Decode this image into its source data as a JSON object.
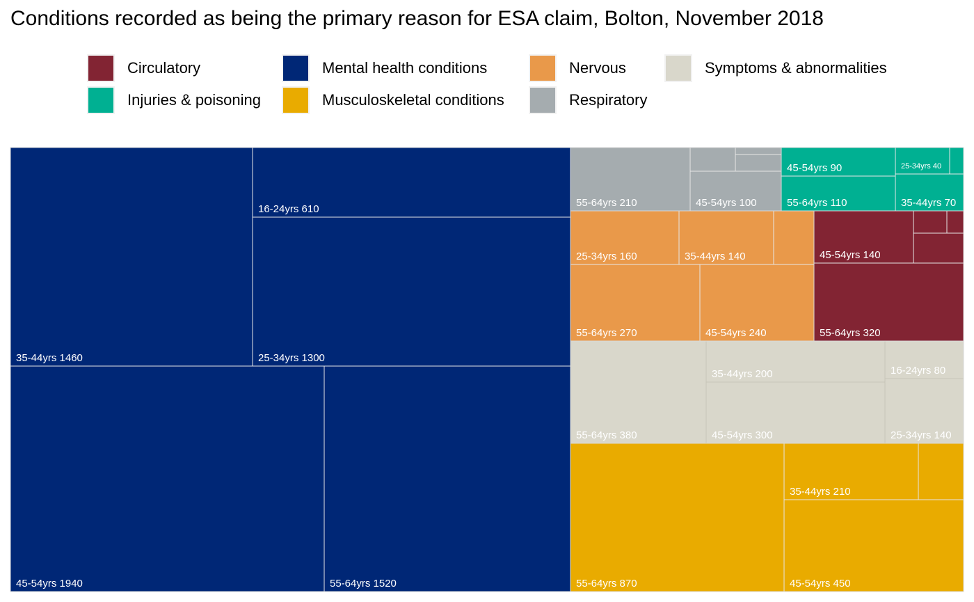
{
  "title": "Conditions recorded as being the primary reason for ESA claim, Bolton, November 2018",
  "chart_data": {
    "type": "treemap",
    "title": "Conditions recorded as being the primary reason for ESA claim, Bolton, November 2018",
    "legend": {
      "position": "top",
      "entries": [
        {
          "name": "Circulatory",
          "color": "#822433"
        },
        {
          "name": "Injuries & poisoning",
          "color": "#00B092"
        },
        {
          "name": "Mental health conditions",
          "color": "#002776"
        },
        {
          "name": "Musculoskeletal conditions",
          "color": "#E9AB00"
        },
        {
          "name": "Nervous",
          "color": "#E9994A"
        },
        {
          "name": "Respiratory",
          "color": "#A5ACAF"
        },
        {
          "name": "Symptoms & abnormalities",
          "color": "#D9D7CB"
        }
      ]
    },
    "groups": [
      {
        "name": "Mental health conditions",
        "cells": [
          {
            "label": "45-54yrs 1940",
            "age": "45-54yrs",
            "value": 1940
          },
          {
            "label": "55-64yrs 1520",
            "age": "55-64yrs",
            "value": 1520
          },
          {
            "label": "35-44yrs 1460",
            "age": "35-44yrs",
            "value": 1460
          },
          {
            "label": "25-34yrs 1300",
            "age": "25-34yrs",
            "value": 1300
          },
          {
            "label": "16-24yrs 610",
            "age": "16-24yrs",
            "value": 610
          }
        ]
      },
      {
        "name": "Musculoskeletal conditions",
        "cells": [
          {
            "label": "55-64yrs 870",
            "age": "55-64yrs",
            "value": 870
          },
          {
            "label": "45-54yrs 450",
            "age": "45-54yrs",
            "value": 450
          },
          {
            "label": "35-44yrs 210",
            "age": "35-44yrs",
            "value": 210
          },
          {
            "label": "",
            "value": 70
          }
        ]
      },
      {
        "name": "Symptoms & abnormalities",
        "cells": [
          {
            "label": "55-64yrs 380",
            "age": "55-64yrs",
            "value": 380
          },
          {
            "label": "45-54yrs 300",
            "age": "45-54yrs",
            "value": 300
          },
          {
            "label": "35-44yrs 200",
            "age": "35-44yrs",
            "value": 200
          },
          {
            "label": "25-34yrs 140",
            "age": "25-34yrs",
            "value": 140
          },
          {
            "label": "16-24yrs 80",
            "age": "16-24yrs",
            "value": 80
          }
        ]
      },
      {
        "name": "Nervous",
        "cells": [
          {
            "label": "55-64yrs 270",
            "age": "55-64yrs",
            "value": 270
          },
          {
            "label": "45-54yrs 240",
            "age": "45-54yrs",
            "value": 240
          },
          {
            "label": "25-34yrs 160",
            "age": "25-34yrs",
            "value": 160
          },
          {
            "label": "35-44yrs 140",
            "age": "35-44yrs",
            "value": 140
          },
          {
            "label": "",
            "value": 50
          }
        ]
      },
      {
        "name": "Circulatory",
        "cells": [
          {
            "label": "55-64yrs 320",
            "age": "55-64yrs",
            "value": 320
          },
          {
            "label": "45-54yrs 140",
            "age": "45-54yrs",
            "value": 140
          },
          {
            "label": "",
            "value": 40
          },
          {
            "label": "",
            "value": 20
          },
          {
            "label": "",
            "value": 10
          }
        ]
      },
      {
        "name": "Respiratory",
        "cells": [
          {
            "label": "55-64yrs 210",
            "age": "55-64yrs",
            "value": 210
          },
          {
            "label": "45-54yrs 100",
            "age": "45-54yrs",
            "value": 100
          },
          {
            "label": "",
            "value": 30
          },
          {
            "label": "",
            "value": 20
          },
          {
            "label": "",
            "value": 10
          }
        ]
      },
      {
        "name": "Injuries & poisoning",
        "cells": [
          {
            "label": "55-64yrs 110",
            "age": "55-64yrs",
            "value": 110
          },
          {
            "label": "45-54yrs 90",
            "age": "45-54yrs",
            "value": 90
          },
          {
            "label": "35-44yrs 70",
            "age": "35-44yrs",
            "value": 70
          },
          {
            "label": "25-34yrs 40",
            "age": "25-34yrs",
            "value": 40
          },
          {
            "label": "",
            "value": 10
          }
        ]
      }
    ]
  }
}
